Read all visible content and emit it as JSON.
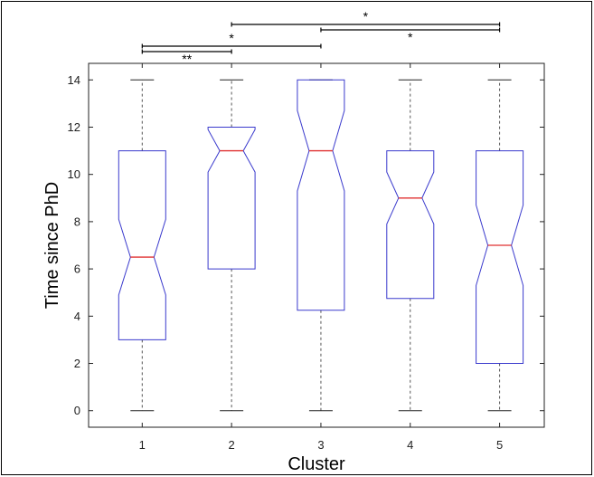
{
  "chart_data": {
    "type": "boxplot",
    "xlabel": "Cluster",
    "ylabel": "Time since PhD",
    "categories": [
      "1",
      "2",
      "3",
      "4",
      "5"
    ],
    "ylim": [
      -0.7,
      14.7
    ],
    "yticks": [
      0,
      2,
      4,
      6,
      8,
      10,
      12,
      14
    ],
    "grid": false,
    "notched": true,
    "colors": {
      "box": "#3a3acd",
      "median": "#e03030",
      "whisker": "#555555",
      "bracket": "#000000"
    },
    "boxes": [
      {
        "category": "1",
        "min": 0,
        "q1": 3,
        "median": 6.5,
        "q3": 11,
        "max": 14,
        "notch_low": 4.9,
        "notch_high": 8.1
      },
      {
        "category": "2",
        "min": 0,
        "q1": 6,
        "median": 11,
        "q3": 12,
        "max": 14,
        "notch_low": 10.1,
        "notch_high": 11.9
      },
      {
        "category": "3",
        "min": 0,
        "q1": 4.25,
        "median": 11,
        "q3": 14,
        "max": 14,
        "notch_low": 9.3,
        "notch_high": 12.7
      },
      {
        "category": "4",
        "min": 0,
        "q1": 4.75,
        "median": 9,
        "q3": 11,
        "max": 14,
        "notch_low": 7.9,
        "notch_high": 10.1
      },
      {
        "category": "5",
        "min": 0,
        "q1": 2,
        "median": 7,
        "q3": 11,
        "max": 14,
        "notch_low": 5.3,
        "notch_high": 8.7
      }
    ],
    "significance": [
      {
        "from": "1",
        "to": "2",
        "label": "**"
      },
      {
        "from": "1",
        "to": "3",
        "label": "*"
      },
      {
        "from": "2",
        "to": "5",
        "label": "*"
      },
      {
        "from": "3",
        "to": "5",
        "label": "*"
      }
    ]
  }
}
